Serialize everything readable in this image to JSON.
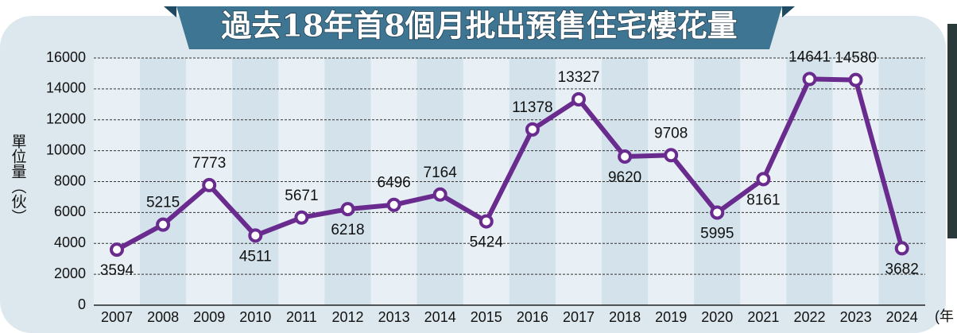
{
  "chart_data": {
    "type": "line",
    "title": "過去18年首8個月批出預售住宅樓花量",
    "y_label": "單位量（伙）",
    "x_label": "(年",
    "categories": [
      "2007",
      "2008",
      "2009",
      "2010",
      "2011",
      "2012",
      "2013",
      "2014",
      "2015",
      "2016",
      "2017",
      "2018",
      "2019",
      "2020",
      "2021",
      "2022",
      "2023",
      "2024"
    ],
    "series": [
      {
        "color": "#6a2b8e",
        "values": [
          3594,
          5215,
          7773,
          4511,
          5671,
          6218,
          6496,
          7164,
          5424,
          11378,
          13327,
          9620,
          9708,
          5995,
          8161,
          14641,
          14580,
          3682
        ]
      }
    ],
    "ylim": [
      0,
      16000
    ],
    "yticks": [
      0,
      2000,
      4000,
      6000,
      8000,
      10000,
      12000,
      14000,
      16000
    ],
    "grid": true
  }
}
